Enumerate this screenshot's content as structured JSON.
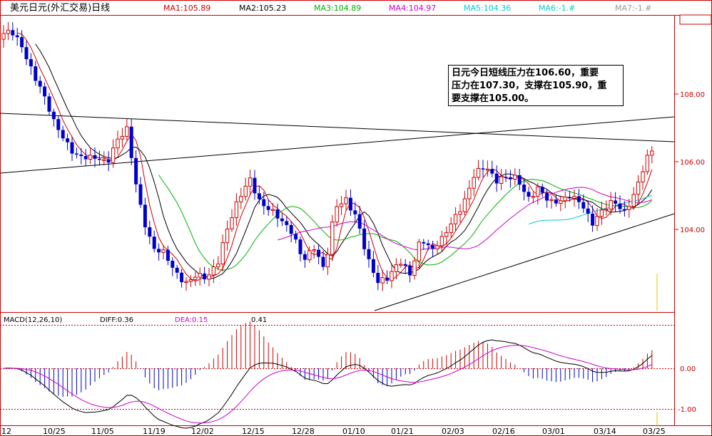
{
  "header": {
    "title": "美元日元(外汇交易)日线",
    "ma": [
      {
        "label": "MA1:105.89",
        "color": "#cc0000"
      },
      {
        "label": "MA2:105.23",
        "color": "#000000"
      },
      {
        "label": "MA3:104.89",
        "color": "#00b000"
      },
      {
        "label": "MA4:104.97",
        "color": "#cc00cc"
      },
      {
        "label": "MA5:104.36",
        "color": "#00cccc"
      },
      {
        "label": "MA6:-1.#",
        "color": "#00cccc"
      },
      {
        "label": "MA7:-1.#",
        "color": "#999999"
      }
    ]
  },
  "annotation": {
    "line1": "日元今日短线压力在106.60，重要",
    "line2": "压力在107.30，支撑在105.90，重",
    "line3": "要支撑在105.00。"
  },
  "macd": {
    "title": "MACD(12,26,10)",
    "diff_label": "DIFF:0.36",
    "dea_label": "DEA:0.15",
    "macd_value": "0.41"
  },
  "colors": {
    "up": "#cc0000",
    "down": "#0000cc",
    "grid": "#cc0000",
    "axis_text": "#cc0000"
  },
  "chart_data": {
    "type": "candlestick",
    "price_axis": {
      "ticks": [
        "108.00",
        "106.00",
        "104.00"
      ],
      "range": [
        101.7,
        110.7
      ]
    },
    "macd_axis": {
      "ticks": [
        "0.00",
        "-1.00"
      ],
      "range": [
        -1.4,
        1.3
      ]
    },
    "dates": [
      "12",
      "10/25",
      "11/05",
      "11/19",
      "12/02",
      "12/15",
      "12/28",
      "01/10",
      "01/21",
      "02/03",
      "02/16",
      "03/01",
      "03/14",
      "03/25"
    ],
    "last_close": 106.3,
    "diff": 0.36,
    "dea": 0.15,
    "macd": 0.41
  }
}
